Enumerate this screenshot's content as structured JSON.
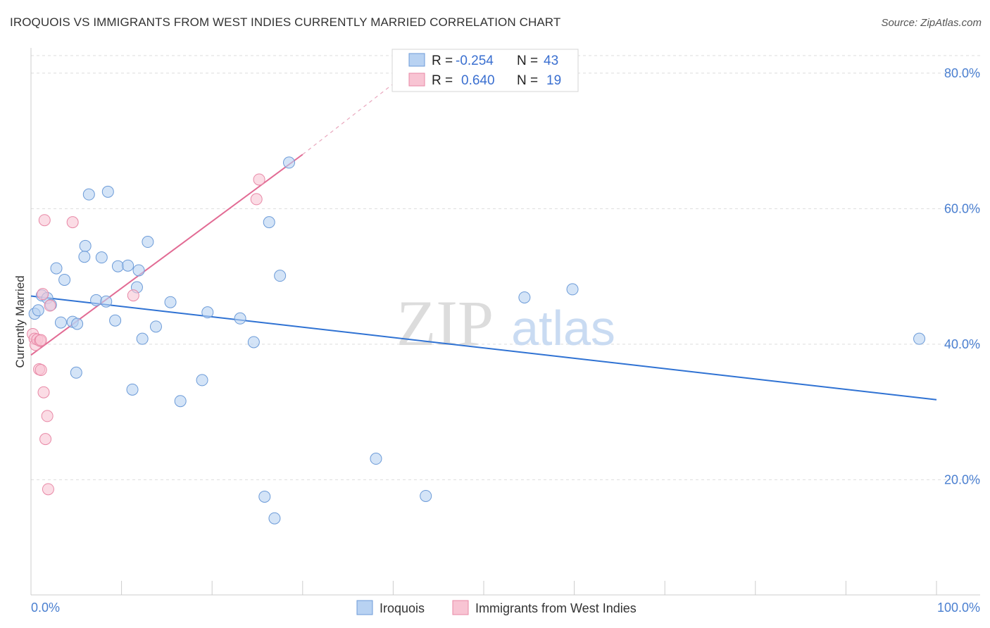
{
  "title": "IROQUOIS VS IMMIGRANTS FROM WEST INDIES CURRENTLY MARRIED CORRELATION CHART",
  "source": "Source: ZipAtlas.com",
  "watermark": {
    "zip": "ZIP",
    "atlas": "atlas"
  },
  "colors": {
    "blue_fill": "#b8d2f2",
    "blue_stroke": "#6c9bd8",
    "blue_line": "#2f72d3",
    "pink_fill": "#f8c4d3",
    "pink_stroke": "#e888a6",
    "pink_line": "#e26b94",
    "axis_text": "#4a7fd0",
    "grid": "#dddddd"
  },
  "stats": [
    {
      "r_label": "R =",
      "r_value": "-0.254",
      "n_label": "N =",
      "n_value": "43",
      "swatch": "blue"
    },
    {
      "r_label": "R =",
      "r_value": "0.640",
      "n_label": "N =",
      "n_value": "19",
      "swatch": "pink"
    }
  ],
  "chart_data": {
    "type": "scatter",
    "title": "IROQUOIS VS IMMIGRANTS FROM WEST INDIES CURRENTLY MARRIED CORRELATION CHART",
    "xlabel": "",
    "ylabel": "Currently Married",
    "xlim": [
      0,
      100
    ],
    "ylim": [
      3,
      83
    ],
    "x_tick_labels": [
      "0.0%",
      "100.0%"
    ],
    "y_ticks": [
      20,
      40,
      60,
      80
    ],
    "y_tick_labels": [
      "20.0%",
      "40.0%",
      "60.0%",
      "80.0%"
    ],
    "grid": true,
    "legend_position": "bottom",
    "series": [
      {
        "name": "Iroquois",
        "color": "blue",
        "points": [
          [
            0.4,
            44.5
          ],
          [
            0.8,
            45.0
          ],
          [
            1.2,
            47.2
          ],
          [
            1.8,
            46.8
          ],
          [
            2.2,
            45.8
          ],
          [
            2.8,
            51.2
          ],
          [
            3.3,
            43.2
          ],
          [
            3.7,
            49.5
          ],
          [
            4.6,
            43.3
          ],
          [
            5.1,
            43.0
          ],
          [
            5.0,
            35.8
          ],
          [
            6.0,
            54.5
          ],
          [
            5.9,
            52.9
          ],
          [
            6.4,
            62.1
          ],
          [
            7.2,
            46.5
          ],
          [
            7.8,
            52.8
          ],
          [
            8.3,
            46.3
          ],
          [
            8.5,
            62.5
          ],
          [
            9.3,
            43.5
          ],
          [
            9.6,
            51.5
          ],
          [
            10.7,
            51.6
          ],
          [
            11.2,
            33.3
          ],
          [
            11.7,
            48.4
          ],
          [
            11.9,
            50.9
          ],
          [
            12.3,
            40.8
          ],
          [
            12.9,
            55.1
          ],
          [
            13.8,
            42.6
          ],
          [
            15.4,
            46.2
          ],
          [
            16.5,
            31.6
          ],
          [
            18.9,
            34.7
          ],
          [
            19.5,
            44.7
          ],
          [
            23.1,
            43.8
          ],
          [
            24.6,
            40.3
          ],
          [
            25.8,
            17.5
          ],
          [
            26.3,
            58.0
          ],
          [
            26.9,
            14.3
          ],
          [
            27.5,
            50.1
          ],
          [
            28.5,
            66.8
          ],
          [
            38.1,
            23.1
          ],
          [
            43.6,
            17.6
          ],
          [
            54.5,
            46.9
          ],
          [
            59.8,
            48.1
          ],
          [
            98.1,
            40.8
          ]
        ],
        "trend": {
          "x": [
            0,
            100
          ],
          "y": [
            47.1,
            31.8
          ]
        }
      },
      {
        "name": "Immigrants from West Indies",
        "color": "pink",
        "points": [
          [
            0.2,
            41.5
          ],
          [
            0.4,
            40.8
          ],
          [
            0.5,
            39.9
          ],
          [
            0.7,
            40.7
          ],
          [
            0.9,
            36.3
          ],
          [
            1.0,
            40.5
          ],
          [
            1.1,
            36.2
          ],
          [
            1.3,
            47.4
          ],
          [
            1.4,
            32.9
          ],
          [
            1.5,
            58.3
          ],
          [
            1.6,
            26.0
          ],
          [
            1.8,
            29.4
          ],
          [
            1.9,
            18.6
          ],
          [
            2.1,
            45.7
          ],
          [
            4.6,
            58.0
          ],
          [
            11.3,
            47.2
          ],
          [
            24.9,
            61.4
          ],
          [
            25.2,
            64.3
          ],
          [
            1.1,
            40.6
          ]
        ],
        "trend": {
          "x": [
            0,
            30
          ],
          "y": [
            38.4,
            68.0
          ],
          "dashed_to": [
            42,
            80.5
          ]
        }
      }
    ]
  }
}
